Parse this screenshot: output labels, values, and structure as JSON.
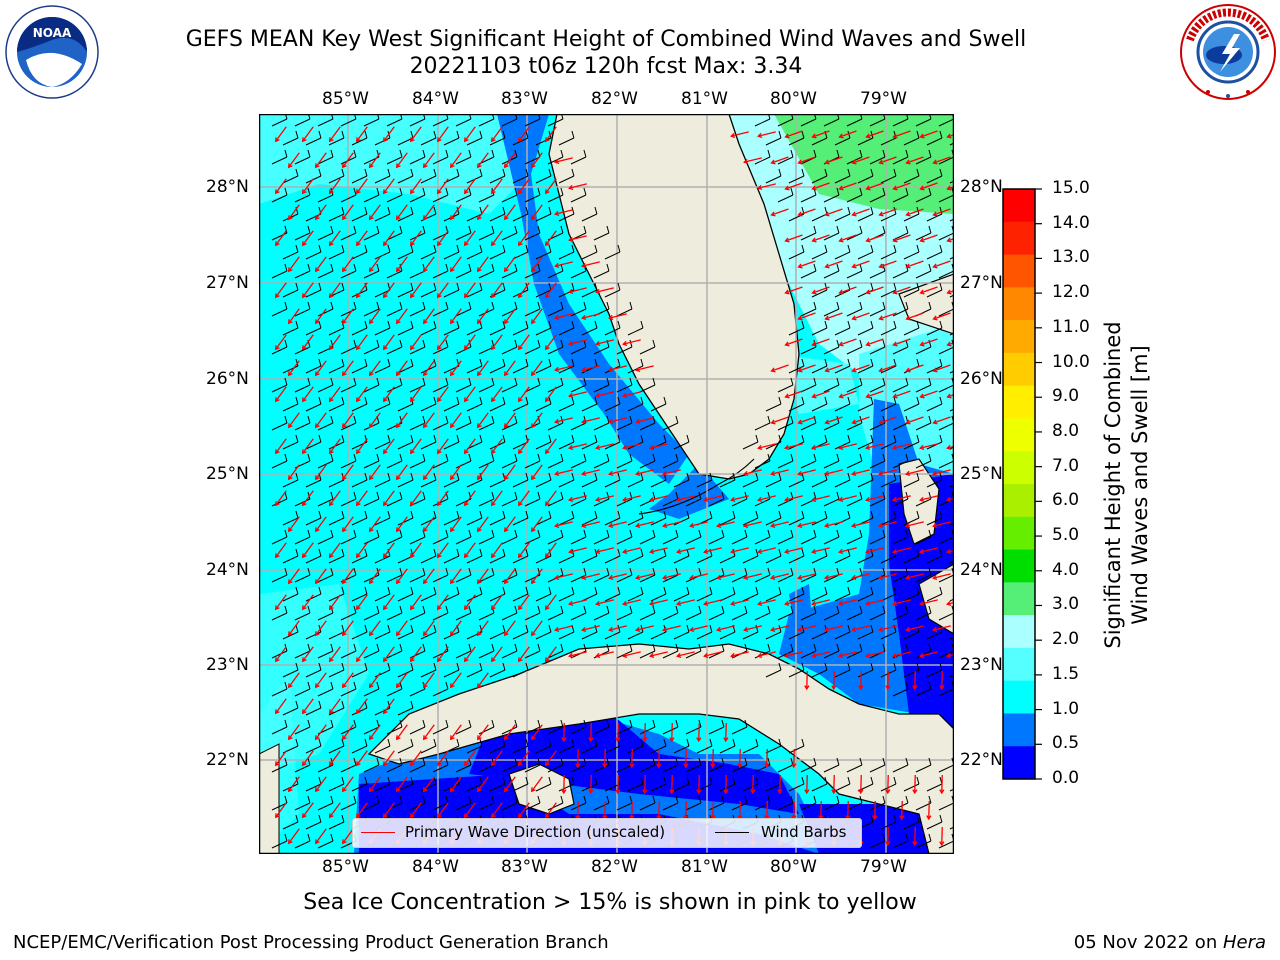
{
  "title": {
    "line1": "GEFS MEAN Key West Significant Height of Combined Wind Waves and Swell",
    "line2": "20221103 t06z 120h fcst   Max: 3.34"
  },
  "logos": {
    "left": {
      "icon": "noaa-logo",
      "text": "NOAA",
      "ring_text": "NATIONAL OCEANIC AND ATMOSPHERIC ADMINISTRATION · U.S. DEPARTMENT OF COMMERCE"
    },
    "right": {
      "icon": "national-weather-service-logo",
      "ring_text": "NATIONAL WEATHER SERVICE"
    }
  },
  "map": {
    "lon_ticks_top": [
      "85°W",
      "84°W",
      "83°W",
      "82°W",
      "81°W",
      "80°W",
      "79°W"
    ],
    "lon_ticks_bottom": [
      "85°W",
      "84°W",
      "83°W",
      "82°W",
      "81°W",
      "80°W",
      "79°W"
    ],
    "lat_ticks_left": [
      "28°N",
      "27°N",
      "26°N",
      "25°N",
      "24°N",
      "23°N",
      "22°N"
    ],
    "lat_ticks_right": [
      "28°N",
      "27°N",
      "26°N",
      "25°N",
      "24°N",
      "23°N",
      "22°N"
    ],
    "grid": true,
    "land_color": "#eeecdc",
    "legend": {
      "items": [
        {
          "label": "Primary Wave Direction (unscaled)",
          "color": "#ff0000"
        },
        {
          "label": "Wind Barbs",
          "color": "#000000"
        }
      ],
      "placement": "bottom-center"
    }
  },
  "colorbar": {
    "label_line1": "Significant Height of Combined",
    "label_line2": "Wind Waves and Swell [m]",
    "ticks": [
      "15.0",
      "14.0",
      "13.0",
      "12.0",
      "11.0",
      "10.0",
      "9.0",
      "8.0",
      "7.0",
      "6.0",
      "5.0",
      "4.0",
      "3.0",
      "2.0",
      "1.5",
      "1.0",
      "0.5",
      "0.0"
    ],
    "colors_top_to_bottom": [
      "#ff0000",
      "#ff2200",
      "#ff5500",
      "#ff8800",
      "#ffaa00",
      "#ffcc00",
      "#ffee00",
      "#eeff00",
      "#ccff00",
      "#aaee00",
      "#66ee00",
      "#00dd00",
      "#55ee77",
      "#aaffff",
      "#55ffff",
      "#00ffff",
      "#0077ff",
      "#0000ff"
    ]
  },
  "ice_note": "Sea Ice Concentration > 15% is shown in pink to yellow",
  "footer": {
    "left": "NCEP/EMC/Verification Post Processing Product Generation Branch",
    "right_date": "05 Nov 2022 on ",
    "right_host": "Hera"
  }
}
